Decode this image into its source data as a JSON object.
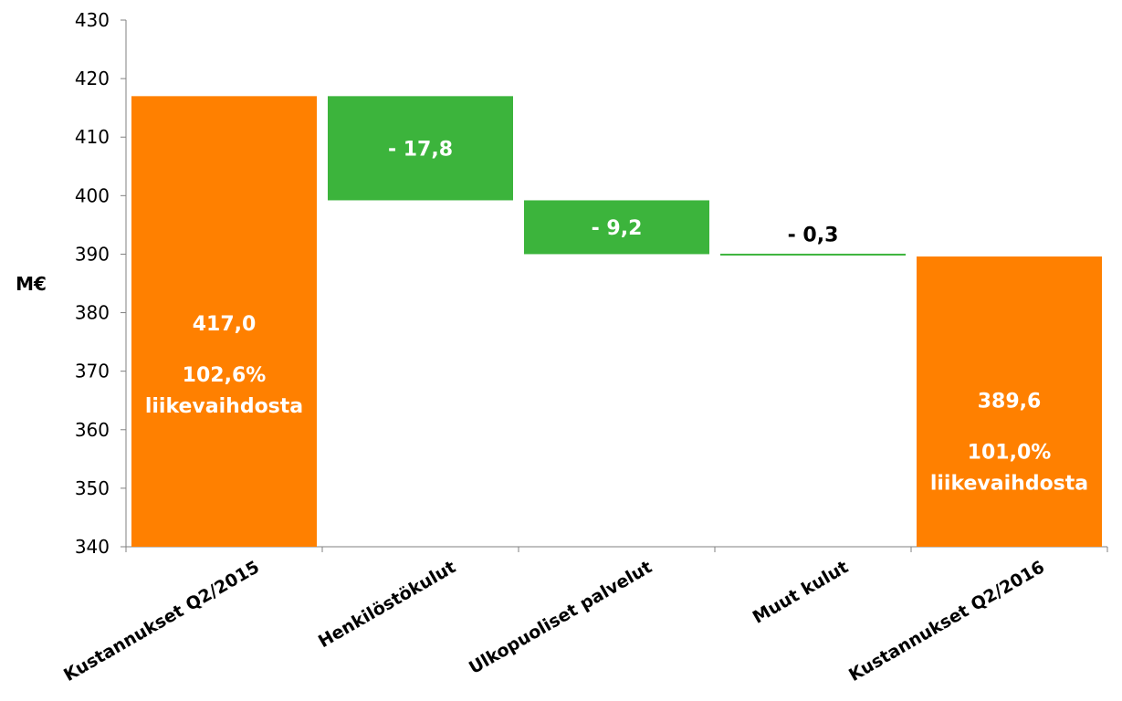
{
  "chart_data": {
    "type": "bar",
    "subtype": "waterfall",
    "ylabel": "M€",
    "ylim": [
      340,
      430
    ],
    "yticks": [
      "340",
      "350",
      "360",
      "370",
      "380",
      "390",
      "400",
      "410",
      "420",
      "430"
    ],
    "grid": false,
    "colors": {
      "total": "#ff8000",
      "decrease": "#3cb43c"
    },
    "bars": [
      {
        "category": "Kustannukset Q2/2015",
        "kind": "total",
        "start": 340,
        "end": 417.0,
        "labels": [
          "417,0",
          "102,6%",
          "liikevaihdosta"
        ],
        "label_color": "#ffffff"
      },
      {
        "category": "Henkilöstökulut",
        "kind": "decrease",
        "start": 417.0,
        "end": 399.2,
        "labels": [
          "- 17,8"
        ],
        "label_color": "#ffffff"
      },
      {
        "category": "Ulkopuoliset palvelut",
        "kind": "decrease",
        "start": 399.2,
        "end": 390.0,
        "labels": [
          "- 9,2"
        ],
        "label_color": "#ffffff"
      },
      {
        "category": "Muut kulut",
        "kind": "decrease",
        "start": 390.0,
        "end": 389.6,
        "labels": [
          "- 0,3"
        ],
        "label_color": "#000000"
      },
      {
        "category": "Kustannukset Q2/2016",
        "kind": "total",
        "start": 340,
        "end": 389.6,
        "labels": [
          "389,6",
          "101,0%",
          "liikevaihdosta"
        ],
        "label_color": "#ffffff"
      }
    ]
  }
}
